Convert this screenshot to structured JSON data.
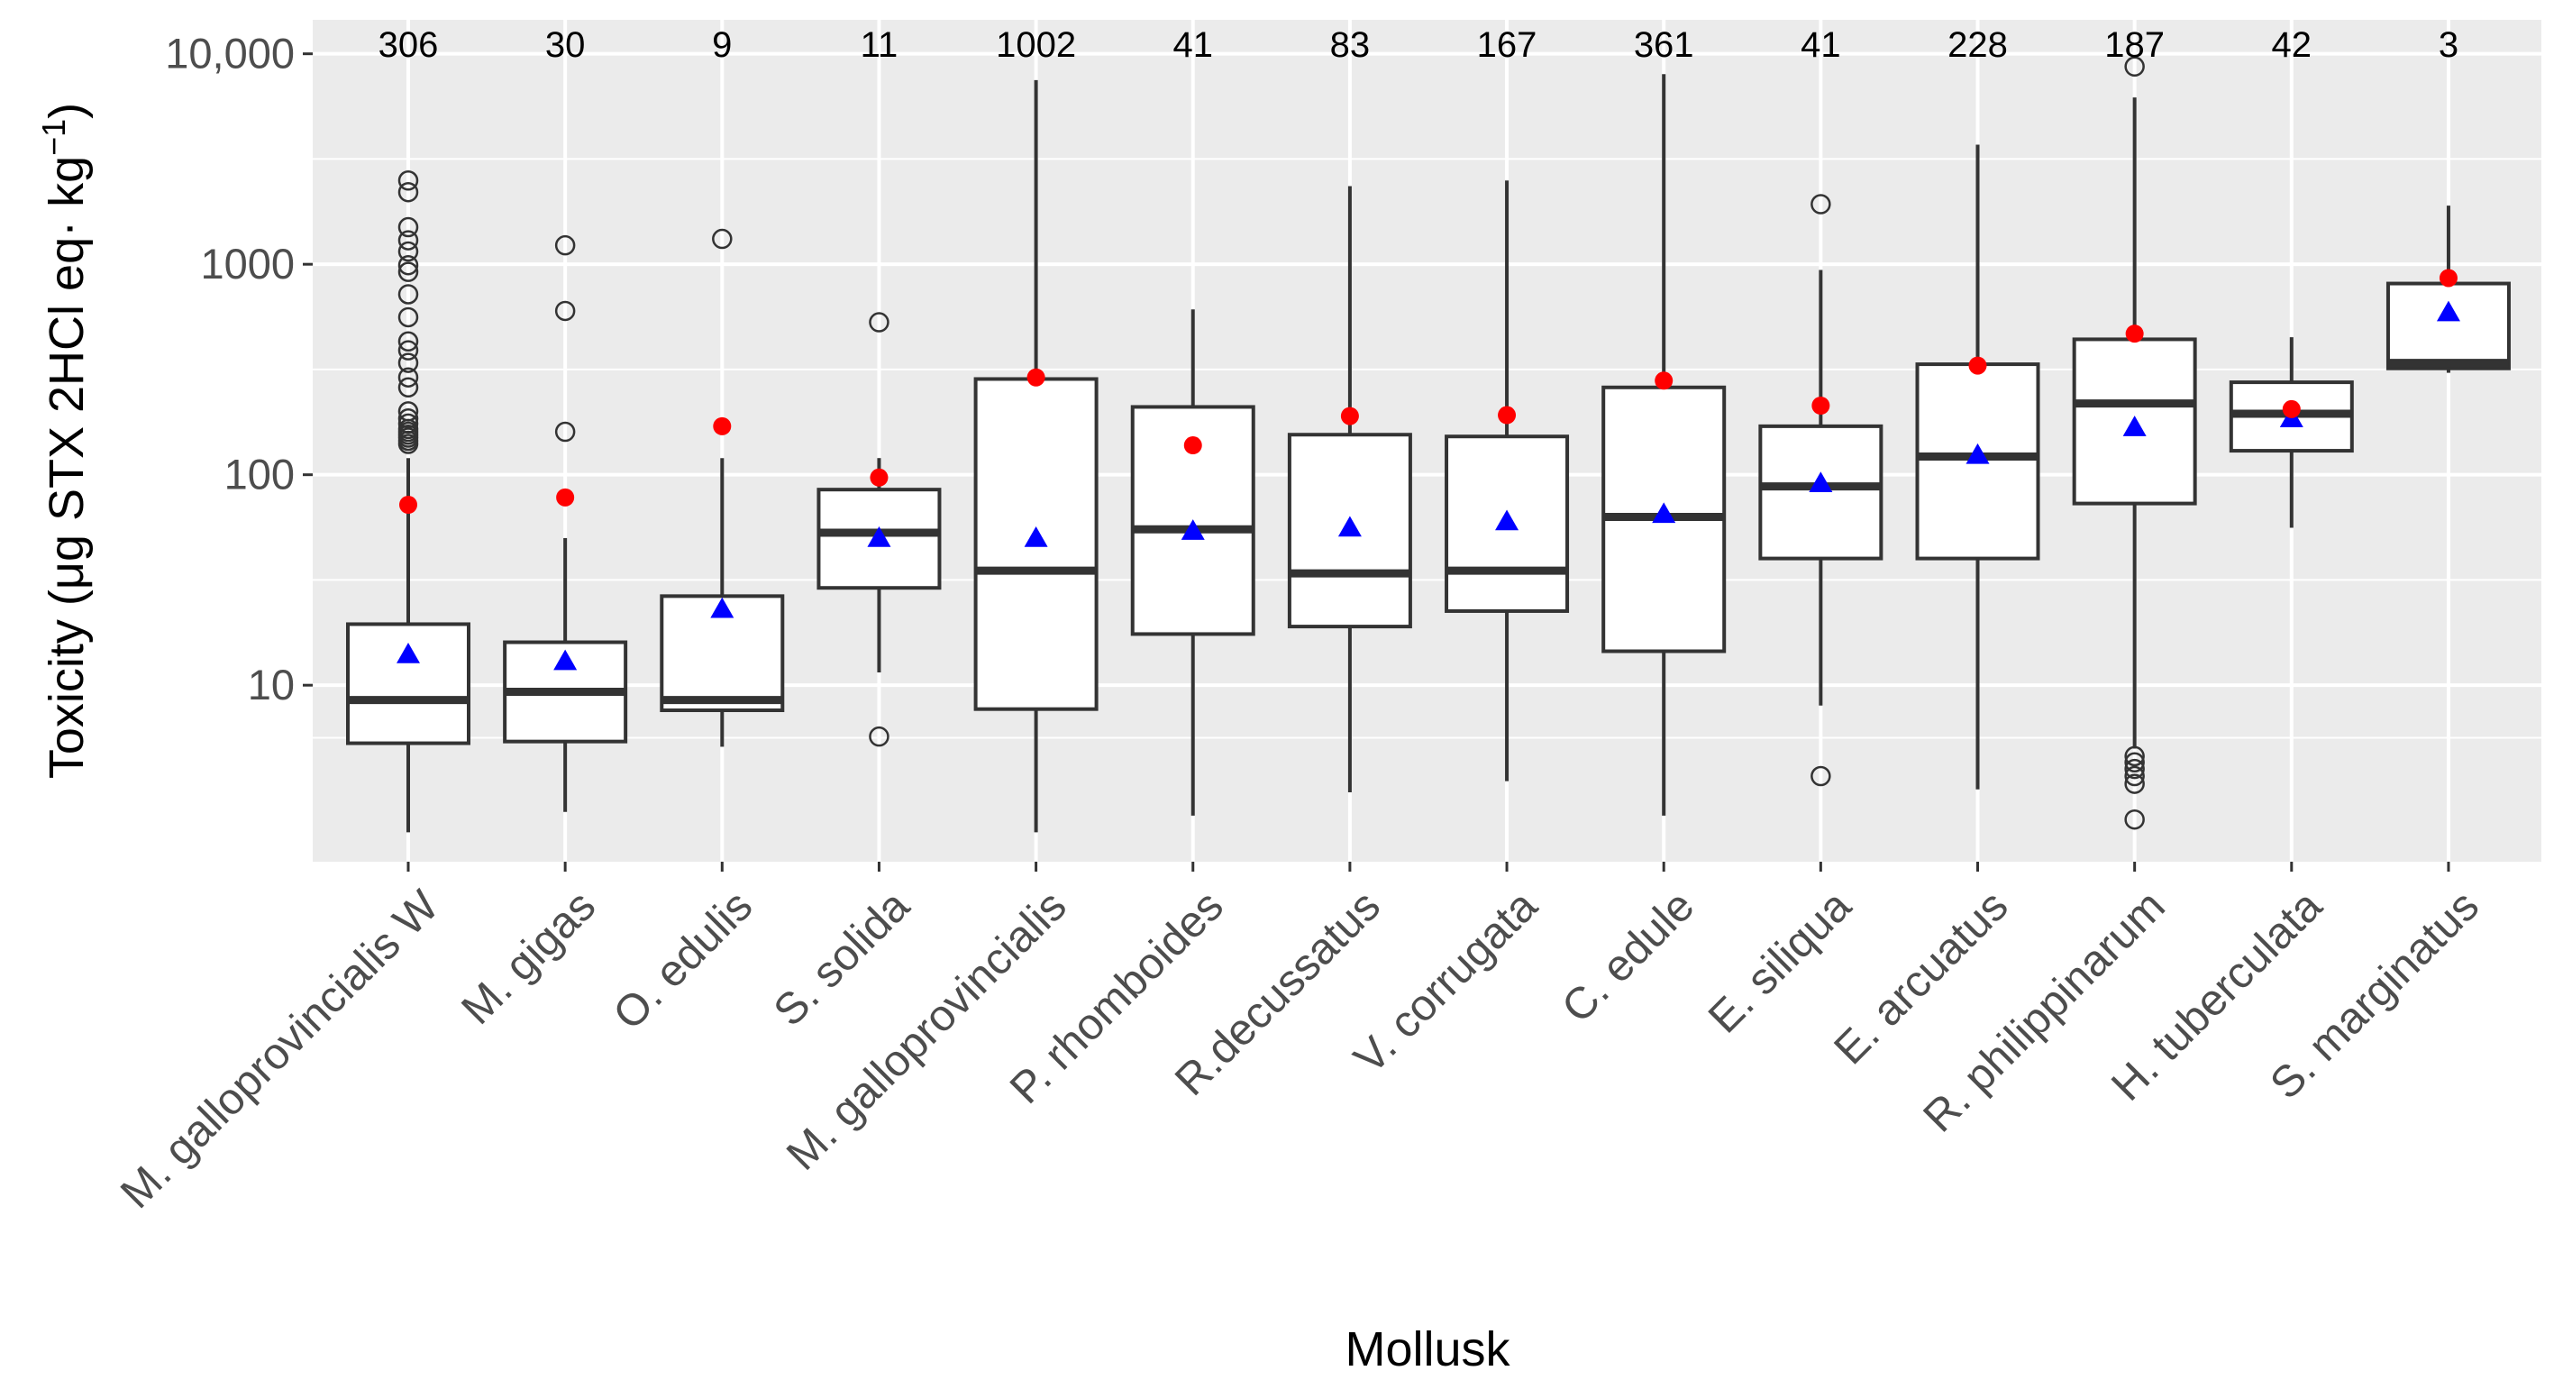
{
  "chart_data": {
    "type": "box",
    "xlabel": "Mollusk",
    "ylabel_main": "Toxicity (μg STX 2HCl eq· kg",
    "ylabel_sup": "−1",
    "ylabel_close": ")",
    "yscale": "log10",
    "ylim": [
      1.45,
      14500
    ],
    "yticks": [
      10,
      100,
      1000,
      10000
    ],
    "yticklabels": [
      "10",
      "100",
      "1000",
      "10,000"
    ],
    "grid": true,
    "colors": {
      "panel": "#ebebeb",
      "grid": "#ffffff",
      "box_fill": "#ffffff",
      "box_line": "#333333",
      "outlier": "#333333",
      "mean_marker": "#ff0000",
      "triangle_marker": "#0000ff"
    },
    "categories": [
      "M. galloprovincialis W",
      "M. gigas",
      "O. edulis",
      "S. solida",
      "M. galloprovincialis",
      "P. rhomboides",
      "R.decussatus",
      "V. corrugata",
      "C. edule",
      "E. siliqua",
      "E. arcuatus",
      "R. philippinarum",
      "H. tuberculata",
      "S. marginatus"
    ],
    "counts": [
      "306",
      "30",
      "9",
      "11",
      "1002",
      "41",
      "83",
      "167",
      "361",
      "41",
      "228",
      "187",
      "42",
      "3"
    ],
    "boxes": [
      {
        "whisker_low": 2.0,
        "q1": 5.3,
        "median": 8.5,
        "q3": 19.5,
        "whisker_high": 120,
        "outliers": [
          140,
          145,
          150,
          155,
          160,
          165,
          175,
          185,
          200,
          260,
          290,
          340,
          390,
          430,
          560,
          720,
          920,
          990,
          1150,
          1300,
          1500,
          2200,
          2500
        ],
        "red_point": 72,
        "blue_triangle": 14
      },
      {
        "whisker_low": 2.5,
        "q1": 5.4,
        "median": 9.3,
        "q3": 16,
        "whisker_high": 50,
        "outliers": [
          160,
          600,
          1230
        ],
        "red_point": 78,
        "blue_triangle": 13
      },
      {
        "whisker_low": 5.1,
        "q1": 7.6,
        "median": 8.5,
        "q3": 26.5,
        "whisker_high": 120,
        "outliers": [
          1320
        ],
        "red_point": 170,
        "blue_triangle": 23
      },
      {
        "whisker_low": 11.5,
        "q1": 29,
        "median": 53,
        "q3": 85,
        "whisker_high": 120,
        "outliers": [
          5.7,
          530
        ],
        "red_point": 97,
        "blue_triangle": 50
      },
      {
        "whisker_low": 2.0,
        "q1": 7.7,
        "median": 35,
        "q3": 285,
        "whisker_high": 7500,
        "outliers": [],
        "red_point": 290,
        "blue_triangle": 50
      },
      {
        "whisker_low": 2.4,
        "q1": 17.5,
        "median": 55,
        "q3": 210,
        "whisker_high": 610,
        "outliers": [],
        "red_point": 138,
        "blue_triangle": 54
      },
      {
        "whisker_low": 3.1,
        "q1": 19,
        "median": 34,
        "q3": 155,
        "whisker_high": 2350,
        "outliers": [],
        "red_point": 190,
        "blue_triangle": 56
      },
      {
        "whisker_low": 3.5,
        "q1": 22.5,
        "median": 35,
        "q3": 152,
        "whisker_high": 2500,
        "outliers": [],
        "red_point": 192,
        "blue_triangle": 60
      },
      {
        "whisker_low": 2.4,
        "q1": 14.5,
        "median": 63,
        "q3": 260,
        "whisker_high": 8000,
        "outliers": [],
        "red_point": 280,
        "blue_triangle": 65
      },
      {
        "whisker_low": 8.0,
        "q1": 40,
        "median": 88,
        "q3": 170,
        "whisker_high": 940,
        "outliers": [
          3.7,
          1930
        ],
        "red_point": 213,
        "blue_triangle": 91
      },
      {
        "whisker_low": 3.2,
        "q1": 40,
        "median": 122,
        "q3": 335,
        "whisker_high": 3700,
        "outliers": [],
        "red_point": 330,
        "blue_triangle": 124
      },
      {
        "whisker_low": 5.0,
        "q1": 73,
        "median": 218,
        "q3": 440,
        "whisker_high": 6200,
        "outliers": [
          2.3,
          3.4,
          3.7,
          4.0,
          4.3,
          4.6,
          8700
        ],
        "red_point": 468,
        "blue_triangle": 168
      },
      {
        "whisker_low": 56,
        "q1": 130,
        "median": 195,
        "q3": 275,
        "whisker_high": 450,
        "outliers": [],
        "red_point": 205,
        "blue_triangle": 185
      },
      {
        "whisker_low": 305,
        "q1": 320,
        "median": 340,
        "q3": 810,
        "whisker_high": 1900,
        "outliers": [],
        "red_point": 860,
        "blue_triangle": 590
      }
    ]
  }
}
